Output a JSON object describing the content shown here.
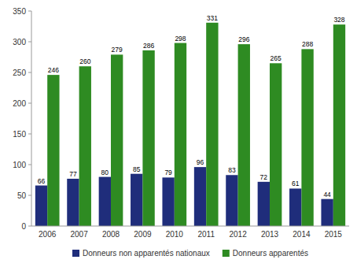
{
  "chart_data": {
    "type": "bar",
    "categories": [
      "2006",
      "2007",
      "2008",
      "2009",
      "2010",
      "2011",
      "2012",
      "2013",
      "2014",
      "2015"
    ],
    "series": [
      {
        "name": "Donneurs non apparentés nationaux",
        "color": "#1F2D7B",
        "values": [
          66,
          77,
          80,
          85,
          79,
          96,
          83,
          72,
          61,
          44
        ]
      },
      {
        "name": "Donneurs apparentés",
        "color": "#2E8B22",
        "values": [
          246,
          260,
          279,
          286,
          298,
          331,
          296,
          265,
          288,
          328
        ]
      }
    ],
    "ylim": [
      0,
      350
    ],
    "yticks": [
      0,
      50,
      100,
      150,
      200,
      250,
      300,
      350
    ],
    "data_labels": true,
    "grid": false,
    "legend": "bottom"
  }
}
